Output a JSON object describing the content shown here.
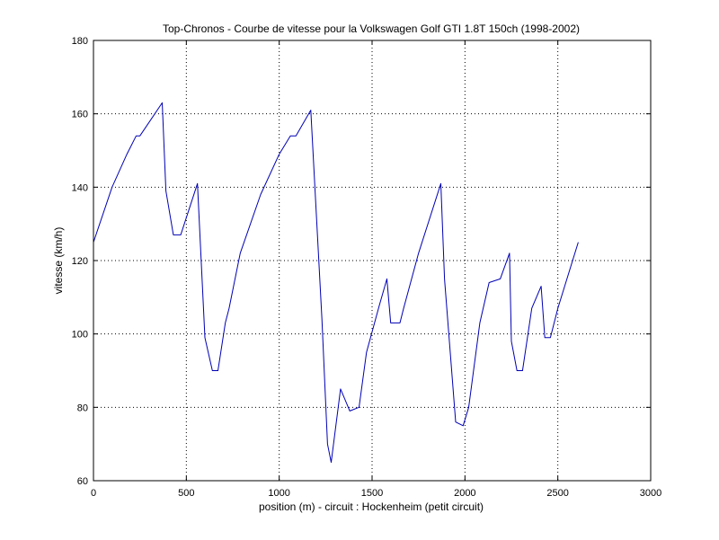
{
  "chart_data": {
    "type": "line",
    "title": "Top-Chronos - Courbe de vitesse pour la Volkswagen Golf GTI 1.8T 150ch (1998-2002)",
    "xlabel": "position (m) - circuit : Hockenheim (petit circuit)",
    "ylabel": "vitesse (km/h)",
    "xlim": [
      0,
      3000
    ],
    "ylim": [
      60,
      180
    ],
    "xticks": [
      0,
      500,
      1000,
      1500,
      2000,
      2500,
      3000
    ],
    "yticks": [
      60,
      80,
      100,
      120,
      140,
      160,
      180
    ],
    "grid": true,
    "line_color": "#0000b4",
    "series": [
      {
        "x": [
          0,
          100,
          180,
          230,
          250,
          370,
          390,
          430,
          470,
          560,
          600,
          640,
          670,
          710,
          730,
          790,
          900,
          1000,
          1060,
          1090,
          1170,
          1230,
          1260,
          1280,
          1330,
          1380,
          1430,
          1470,
          1540,
          1580,
          1600,
          1650,
          1670,
          1750,
          1870,
          1890,
          1950,
          1990,
          2020,
          2080,
          2130,
          2190,
          2240,
          2250,
          2280,
          2310,
          2360,
          2410,
          2430,
          2460,
          2500,
          2610
        ],
        "y": [
          125,
          140,
          149,
          154,
          154,
          163,
          139,
          127,
          127,
          141,
          99,
          90,
          90,
          103,
          107,
          122,
          138,
          149,
          154,
          154,
          161,
          104,
          70,
          65,
          85,
          79,
          80,
          95,
          108,
          115,
          103,
          103,
          107,
          122,
          141,
          115,
          76,
          75,
          80,
          103,
          114,
          115,
          122,
          98,
          90,
          90,
          107,
          113,
          99,
          99,
          107,
          125
        ]
      }
    ]
  }
}
